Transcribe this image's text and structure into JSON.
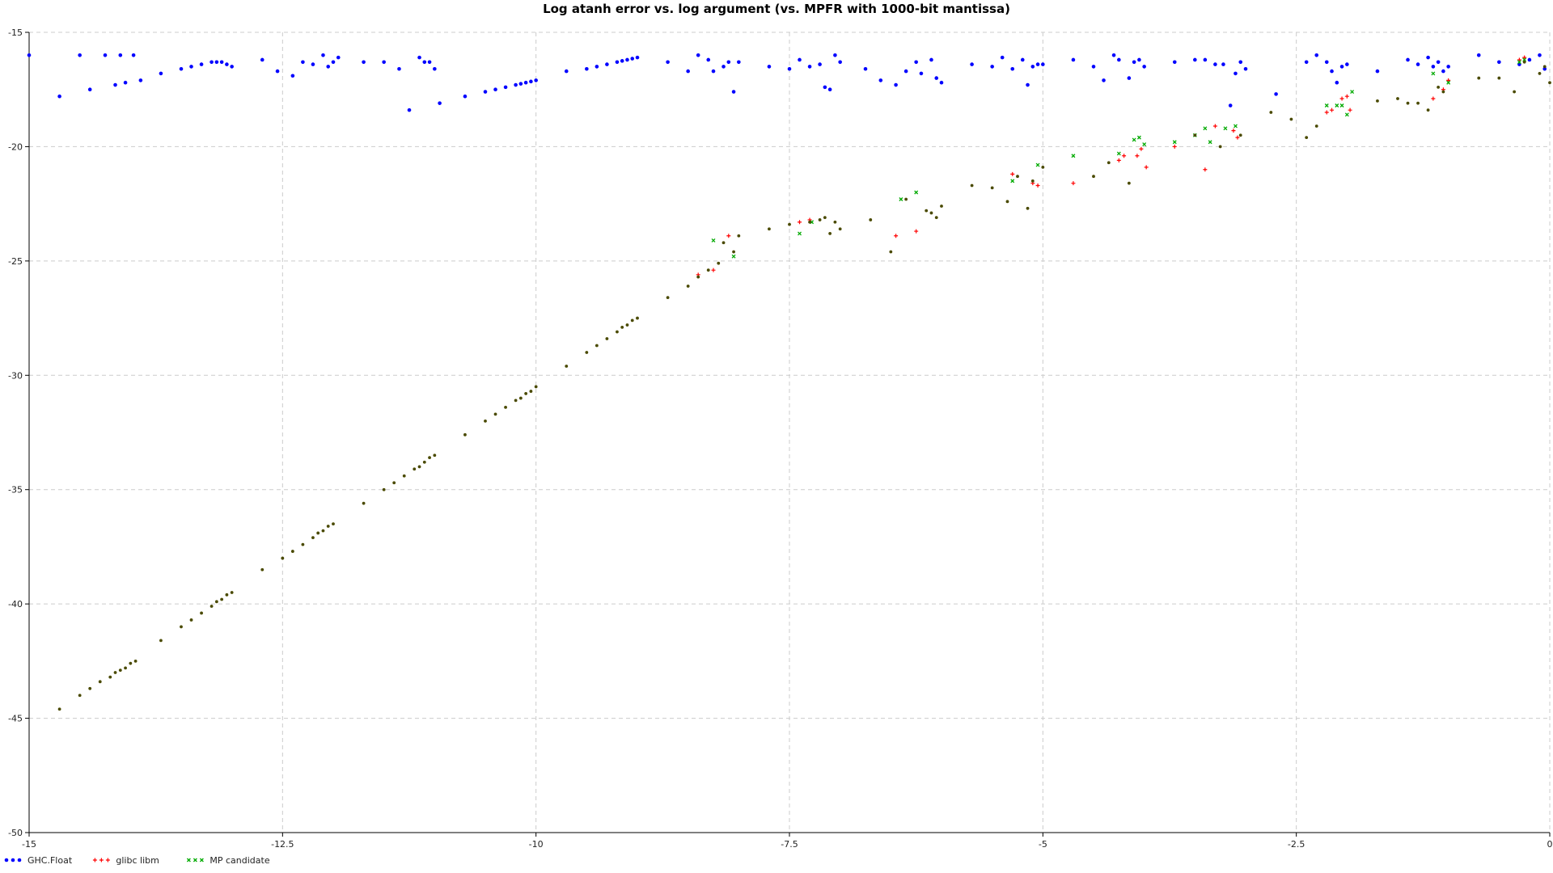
{
  "chart_data": {
    "type": "scatter",
    "title": "Log atanh error vs. log argument (vs. MPFR with 1000-bit mantissa)",
    "xlabel": "",
    "ylabel": "",
    "xlim": [
      -15,
      0
    ],
    "ylim": [
      -50,
      -15
    ],
    "grid": true,
    "legend_position": "bottom-left",
    "x_ticks": [
      -15,
      -12.5,
      -10,
      -7.5,
      -5,
      -2.5,
      0
    ],
    "x_tick_labels": [
      "-15",
      "-12.5",
      "-10",
      "-7.5",
      "-5",
      "-2.5",
      "0"
    ],
    "y_ticks": [
      -15,
      -20,
      -25,
      -30,
      -35,
      -40,
      -45,
      -50
    ],
    "y_tick_labels": [
      "-15",
      "-20",
      "-25",
      "-30",
      "-35",
      "-40",
      "-45",
      "-50"
    ],
    "colors": {
      "ghc": "#0000ff",
      "glibc": "#ff0000",
      "mp": "#00aa00",
      "overlap": "#4a4a00",
      "grid": "#cccccc"
    },
    "series": [
      {
        "name": "GHC.Float",
        "marker": "dot",
        "color": "#0000ff",
        "points": [
          [
            -15.0,
            -16.0
          ],
          [
            -14.7,
            -17.8
          ],
          [
            -14.5,
            -16.0
          ],
          [
            -14.4,
            -17.5
          ],
          [
            -14.25,
            -16.0
          ],
          [
            -14.15,
            -17.3
          ],
          [
            -14.1,
            -16.0
          ],
          [
            -14.05,
            -17.2
          ],
          [
            -13.97,
            -16.0
          ],
          [
            -13.9,
            -17.1
          ],
          [
            -13.7,
            -16.8
          ],
          [
            -13.5,
            -16.6
          ],
          [
            -13.4,
            -16.5
          ],
          [
            -13.3,
            -16.4
          ],
          [
            -13.2,
            -16.3
          ],
          [
            -13.15,
            -16.3
          ],
          [
            -13.1,
            -16.3
          ],
          [
            -13.05,
            -16.4
          ],
          [
            -13.0,
            -16.5
          ],
          [
            -12.7,
            -16.2
          ],
          [
            -12.55,
            -16.7
          ],
          [
            -12.4,
            -16.9
          ],
          [
            -12.3,
            -16.3
          ],
          [
            -12.2,
            -16.4
          ],
          [
            -12.1,
            -16.0
          ],
          [
            -12.05,
            -16.5
          ],
          [
            -12.0,
            -16.3
          ],
          [
            -11.95,
            -16.1
          ],
          [
            -11.7,
            -16.3
          ],
          [
            -11.5,
            -16.3
          ],
          [
            -11.35,
            -16.6
          ],
          [
            -11.25,
            -18.4
          ],
          [
            -11.15,
            -16.1
          ],
          [
            -11.1,
            -16.3
          ],
          [
            -11.05,
            -16.3
          ],
          [
            -11.0,
            -16.6
          ],
          [
            -10.95,
            -18.1
          ],
          [
            -10.7,
            -17.8
          ],
          [
            -10.5,
            -17.6
          ],
          [
            -10.4,
            -17.5
          ],
          [
            -10.3,
            -17.4
          ],
          [
            -10.2,
            -17.3
          ],
          [
            -10.15,
            -17.25
          ],
          [
            -10.1,
            -17.2
          ],
          [
            -10.05,
            -17.15
          ],
          [
            -10.0,
            -17.1
          ],
          [
            -9.7,
            -16.7
          ],
          [
            -9.5,
            -16.6
          ],
          [
            -9.4,
            -16.5
          ],
          [
            -9.3,
            -16.4
          ],
          [
            -9.2,
            -16.3
          ],
          [
            -9.15,
            -16.25
          ],
          [
            -9.1,
            -16.2
          ],
          [
            -9.05,
            -16.15
          ],
          [
            -9.0,
            -16.1
          ],
          [
            -8.7,
            -16.3
          ],
          [
            -8.5,
            -16.7
          ],
          [
            -8.4,
            -16.0
          ],
          [
            -8.3,
            -16.2
          ],
          [
            -8.25,
            -16.7
          ],
          [
            -8.15,
            -16.5
          ],
          [
            -8.1,
            -16.3
          ],
          [
            -8.05,
            -17.6
          ],
          [
            -8.0,
            -16.3
          ],
          [
            -7.7,
            -16.5
          ],
          [
            -7.5,
            -16.6
          ],
          [
            -7.4,
            -16.2
          ],
          [
            -7.3,
            -16.5
          ],
          [
            -7.2,
            -16.4
          ],
          [
            -7.15,
            -17.4
          ],
          [
            -7.1,
            -17.5
          ],
          [
            -7.05,
            -16.0
          ],
          [
            -7.0,
            -16.3
          ],
          [
            -6.75,
            -16.6
          ],
          [
            -6.6,
            -17.1
          ],
          [
            -6.45,
            -17.3
          ],
          [
            -6.35,
            -16.7
          ],
          [
            -6.25,
            -16.3
          ],
          [
            -6.2,
            -16.8
          ],
          [
            -6.1,
            -16.2
          ],
          [
            -6.05,
            -17.0
          ],
          [
            -6.0,
            -17.2
          ],
          [
            -5.7,
            -16.4
          ],
          [
            -5.5,
            -16.5
          ],
          [
            -5.4,
            -16.1
          ],
          [
            -5.3,
            -16.6
          ],
          [
            -5.2,
            -16.2
          ],
          [
            -5.15,
            -17.3
          ],
          [
            -5.1,
            -16.5
          ],
          [
            -5.05,
            -16.4
          ],
          [
            -5.0,
            -16.4
          ],
          [
            -4.7,
            -16.2
          ],
          [
            -4.5,
            -16.5
          ],
          [
            -4.4,
            -17.1
          ],
          [
            -4.3,
            -16.0
          ],
          [
            -4.25,
            -16.2
          ],
          [
            -4.15,
            -17.0
          ],
          [
            -4.1,
            -16.3
          ],
          [
            -4.05,
            -16.2
          ],
          [
            -4.0,
            -16.5
          ],
          [
            -3.7,
            -16.3
          ],
          [
            -3.5,
            -16.2
          ],
          [
            -3.4,
            -16.2
          ],
          [
            -3.3,
            -16.4
          ],
          [
            -3.22,
            -16.4
          ],
          [
            -3.15,
            -18.2
          ],
          [
            -3.1,
            -16.8
          ],
          [
            -3.05,
            -16.3
          ],
          [
            -3.0,
            -16.6
          ],
          [
            -2.7,
            -17.7
          ],
          [
            -2.4,
            -16.3
          ],
          [
            -2.3,
            -16.0
          ],
          [
            -2.2,
            -16.3
          ],
          [
            -2.15,
            -16.7
          ],
          [
            -2.1,
            -17.2
          ],
          [
            -2.05,
            -16.5
          ],
          [
            -2.0,
            -16.4
          ],
          [
            -1.7,
            -16.7
          ],
          [
            -1.4,
            -16.2
          ],
          [
            -1.3,
            -16.4
          ],
          [
            -1.2,
            -16.1
          ],
          [
            -1.15,
            -16.5
          ],
          [
            -1.1,
            -16.3
          ],
          [
            -1.05,
            -16.7
          ],
          [
            -1.0,
            -16.5
          ],
          [
            -0.7,
            -16.0
          ],
          [
            -0.5,
            -16.3
          ],
          [
            -0.3,
            -16.4
          ],
          [
            -0.2,
            -16.2
          ],
          [
            -0.1,
            -16.0
          ],
          [
            -0.05,
            -16.6
          ]
        ]
      },
      {
        "name": "glibc libm",
        "marker": "plus",
        "color": "#ff0000",
        "points": [
          [
            -8.4,
            -25.6
          ],
          [
            -8.25,
            -25.4
          ],
          [
            -8.1,
            -23.9
          ],
          [
            -7.4,
            -23.3
          ],
          [
            -7.3,
            -23.2
          ],
          [
            -6.45,
            -23.9
          ],
          [
            -6.25,
            -23.7
          ],
          [
            -5.3,
            -21.2
          ],
          [
            -5.1,
            -21.6
          ],
          [
            -5.05,
            -21.7
          ],
          [
            -4.7,
            -21.6
          ],
          [
            -4.25,
            -20.6
          ],
          [
            -4.2,
            -20.4
          ],
          [
            -4.07,
            -20.4
          ],
          [
            -4.03,
            -20.1
          ],
          [
            -3.98,
            -20.9
          ],
          [
            -3.7,
            -20.0
          ],
          [
            -3.4,
            -21.0
          ],
          [
            -3.3,
            -19.1
          ],
          [
            -3.12,
            -19.3
          ],
          [
            -3.08,
            -19.6
          ],
          [
            -2.2,
            -18.5
          ],
          [
            -2.15,
            -18.4
          ],
          [
            -2.05,
            -17.9
          ],
          [
            -2.0,
            -17.8
          ],
          [
            -1.97,
            -18.4
          ],
          [
            -1.15,
            -17.9
          ],
          [
            -1.05,
            -17.5
          ],
          [
            -1.0,
            -17.1
          ],
          [
            -0.3,
            -16.2
          ],
          [
            -0.25,
            -16.1
          ]
        ]
      },
      {
        "name": "MP candidate",
        "marker": "x",
        "color": "#00aa00",
        "points": [
          [
            -8.25,
            -24.1
          ],
          [
            -8.05,
            -24.8
          ],
          [
            -7.4,
            -23.8
          ],
          [
            -7.28,
            -23.3
          ],
          [
            -6.4,
            -22.3
          ],
          [
            -6.25,
            -22.0
          ],
          [
            -5.3,
            -21.5
          ],
          [
            -5.05,
            -20.8
          ],
          [
            -4.7,
            -20.4
          ],
          [
            -4.25,
            -20.3
          ],
          [
            -4.1,
            -19.7
          ],
          [
            -4.05,
            -19.6
          ],
          [
            -4.0,
            -19.9
          ],
          [
            -3.7,
            -19.8
          ],
          [
            -3.5,
            -19.5
          ],
          [
            -3.4,
            -19.2
          ],
          [
            -3.35,
            -19.8
          ],
          [
            -3.2,
            -19.2
          ],
          [
            -3.1,
            -19.1
          ],
          [
            -2.2,
            -18.2
          ],
          [
            -2.1,
            -18.2
          ],
          [
            -2.05,
            -18.2
          ],
          [
            -2.0,
            -18.6
          ],
          [
            -1.95,
            -17.6
          ],
          [
            -1.15,
            -16.8
          ],
          [
            -1.0,
            -17.2
          ],
          [
            -0.3,
            -16.3
          ],
          [
            -0.25,
            -16.2
          ]
        ]
      },
      {
        "name": "",
        "marker": "dot-small",
        "color": "#4a4a00",
        "points": [
          [
            -14.7,
            -44.6
          ],
          [
            -14.5,
            -44.0
          ],
          [
            -14.4,
            -43.7
          ],
          [
            -14.3,
            -43.4
          ],
          [
            -14.2,
            -43.2
          ],
          [
            -14.15,
            -43.0
          ],
          [
            -14.1,
            -42.9
          ],
          [
            -14.05,
            -42.8
          ],
          [
            -14.0,
            -42.6
          ],
          [
            -13.95,
            -42.5
          ],
          [
            -13.7,
            -41.6
          ],
          [
            -13.5,
            -41.0
          ],
          [
            -13.4,
            -40.7
          ],
          [
            -13.3,
            -40.4
          ],
          [
            -13.2,
            -40.1
          ],
          [
            -13.15,
            -39.9
          ],
          [
            -13.1,
            -39.8
          ],
          [
            -13.05,
            -39.6
          ],
          [
            -13.0,
            -39.5
          ],
          [
            -12.7,
            -38.5
          ],
          [
            -12.5,
            -38.0
          ],
          [
            -12.4,
            -37.7
          ],
          [
            -12.3,
            -37.4
          ],
          [
            -12.2,
            -37.1
          ],
          [
            -12.15,
            -36.9
          ],
          [
            -12.1,
            -36.8
          ],
          [
            -12.05,
            -36.6
          ],
          [
            -12.0,
            -36.5
          ],
          [
            -11.7,
            -35.6
          ],
          [
            -11.5,
            -35.0
          ],
          [
            -11.4,
            -34.7
          ],
          [
            -11.3,
            -34.4
          ],
          [
            -11.2,
            -34.1
          ],
          [
            -11.15,
            -34.0
          ],
          [
            -11.1,
            -33.8
          ],
          [
            -11.05,
            -33.6
          ],
          [
            -11.0,
            -33.5
          ],
          [
            -10.7,
            -32.6
          ],
          [
            -10.5,
            -32.0
          ],
          [
            -10.4,
            -31.7
          ],
          [
            -10.3,
            -31.4
          ],
          [
            -10.2,
            -31.1
          ],
          [
            -10.15,
            -31.0
          ],
          [
            -10.1,
            -30.8
          ],
          [
            -10.05,
            -30.7
          ],
          [
            -10.0,
            -30.5
          ],
          [
            -9.7,
            -29.6
          ],
          [
            -9.5,
            -29.0
          ],
          [
            -9.4,
            -28.7
          ],
          [
            -9.3,
            -28.4
          ],
          [
            -9.2,
            -28.1
          ],
          [
            -9.15,
            -27.9
          ],
          [
            -9.1,
            -27.8
          ],
          [
            -9.05,
            -27.6
          ],
          [
            -9.0,
            -27.5
          ],
          [
            -8.7,
            -26.6
          ],
          [
            -8.5,
            -26.1
          ],
          [
            -8.4,
            -25.7
          ],
          [
            -8.3,
            -25.4
          ],
          [
            -8.2,
            -25.1
          ],
          [
            -8.15,
            -24.2
          ],
          [
            -8.0,
            -23.9
          ],
          [
            -8.05,
            -24.6
          ],
          [
            -7.7,
            -23.6
          ],
          [
            -7.5,
            -23.4
          ],
          [
            -7.3,
            -23.3
          ],
          [
            -7.2,
            -23.2
          ],
          [
            -7.15,
            -23.1
          ],
          [
            -7.1,
            -23.8
          ],
          [
            -7.05,
            -23.3
          ],
          [
            -7.0,
            -23.6
          ],
          [
            -6.7,
            -23.2
          ],
          [
            -6.5,
            -24.6
          ],
          [
            -6.35,
            -22.3
          ],
          [
            -6.15,
            -22.8
          ],
          [
            -6.1,
            -22.9
          ],
          [
            -6.05,
            -23.1
          ],
          [
            -6.0,
            -22.6
          ],
          [
            -5.7,
            -21.7
          ],
          [
            -5.5,
            -21.8
          ],
          [
            -5.35,
            -22.4
          ],
          [
            -5.25,
            -21.3
          ],
          [
            -5.15,
            -22.7
          ],
          [
            -5.1,
            -21.5
          ],
          [
            -5.0,
            -20.9
          ],
          [
            -4.5,
            -21.3
          ],
          [
            -4.35,
            -20.7
          ],
          [
            -4.15,
            -21.6
          ],
          [
            -3.5,
            -19.5
          ],
          [
            -3.25,
            -20.0
          ],
          [
            -3.05,
            -19.5
          ],
          [
            -2.75,
            -18.5
          ],
          [
            -2.55,
            -18.8
          ],
          [
            -2.4,
            -19.6
          ],
          [
            -2.3,
            -19.1
          ],
          [
            -1.7,
            -18.0
          ],
          [
            -1.5,
            -17.9
          ],
          [
            -1.4,
            -18.1
          ],
          [
            -1.3,
            -18.1
          ],
          [
            -1.2,
            -18.4
          ],
          [
            -1.1,
            -17.4
          ],
          [
            -1.05,
            -17.6
          ],
          [
            -0.7,
            -17.0
          ],
          [
            -0.5,
            -17.0
          ],
          [
            -0.35,
            -17.6
          ],
          [
            -0.25,
            -16.3
          ],
          [
            -0.1,
            -16.8
          ],
          [
            -0.05,
            -16.5
          ],
          [
            0.0,
            -17.2
          ]
        ]
      }
    ]
  }
}
